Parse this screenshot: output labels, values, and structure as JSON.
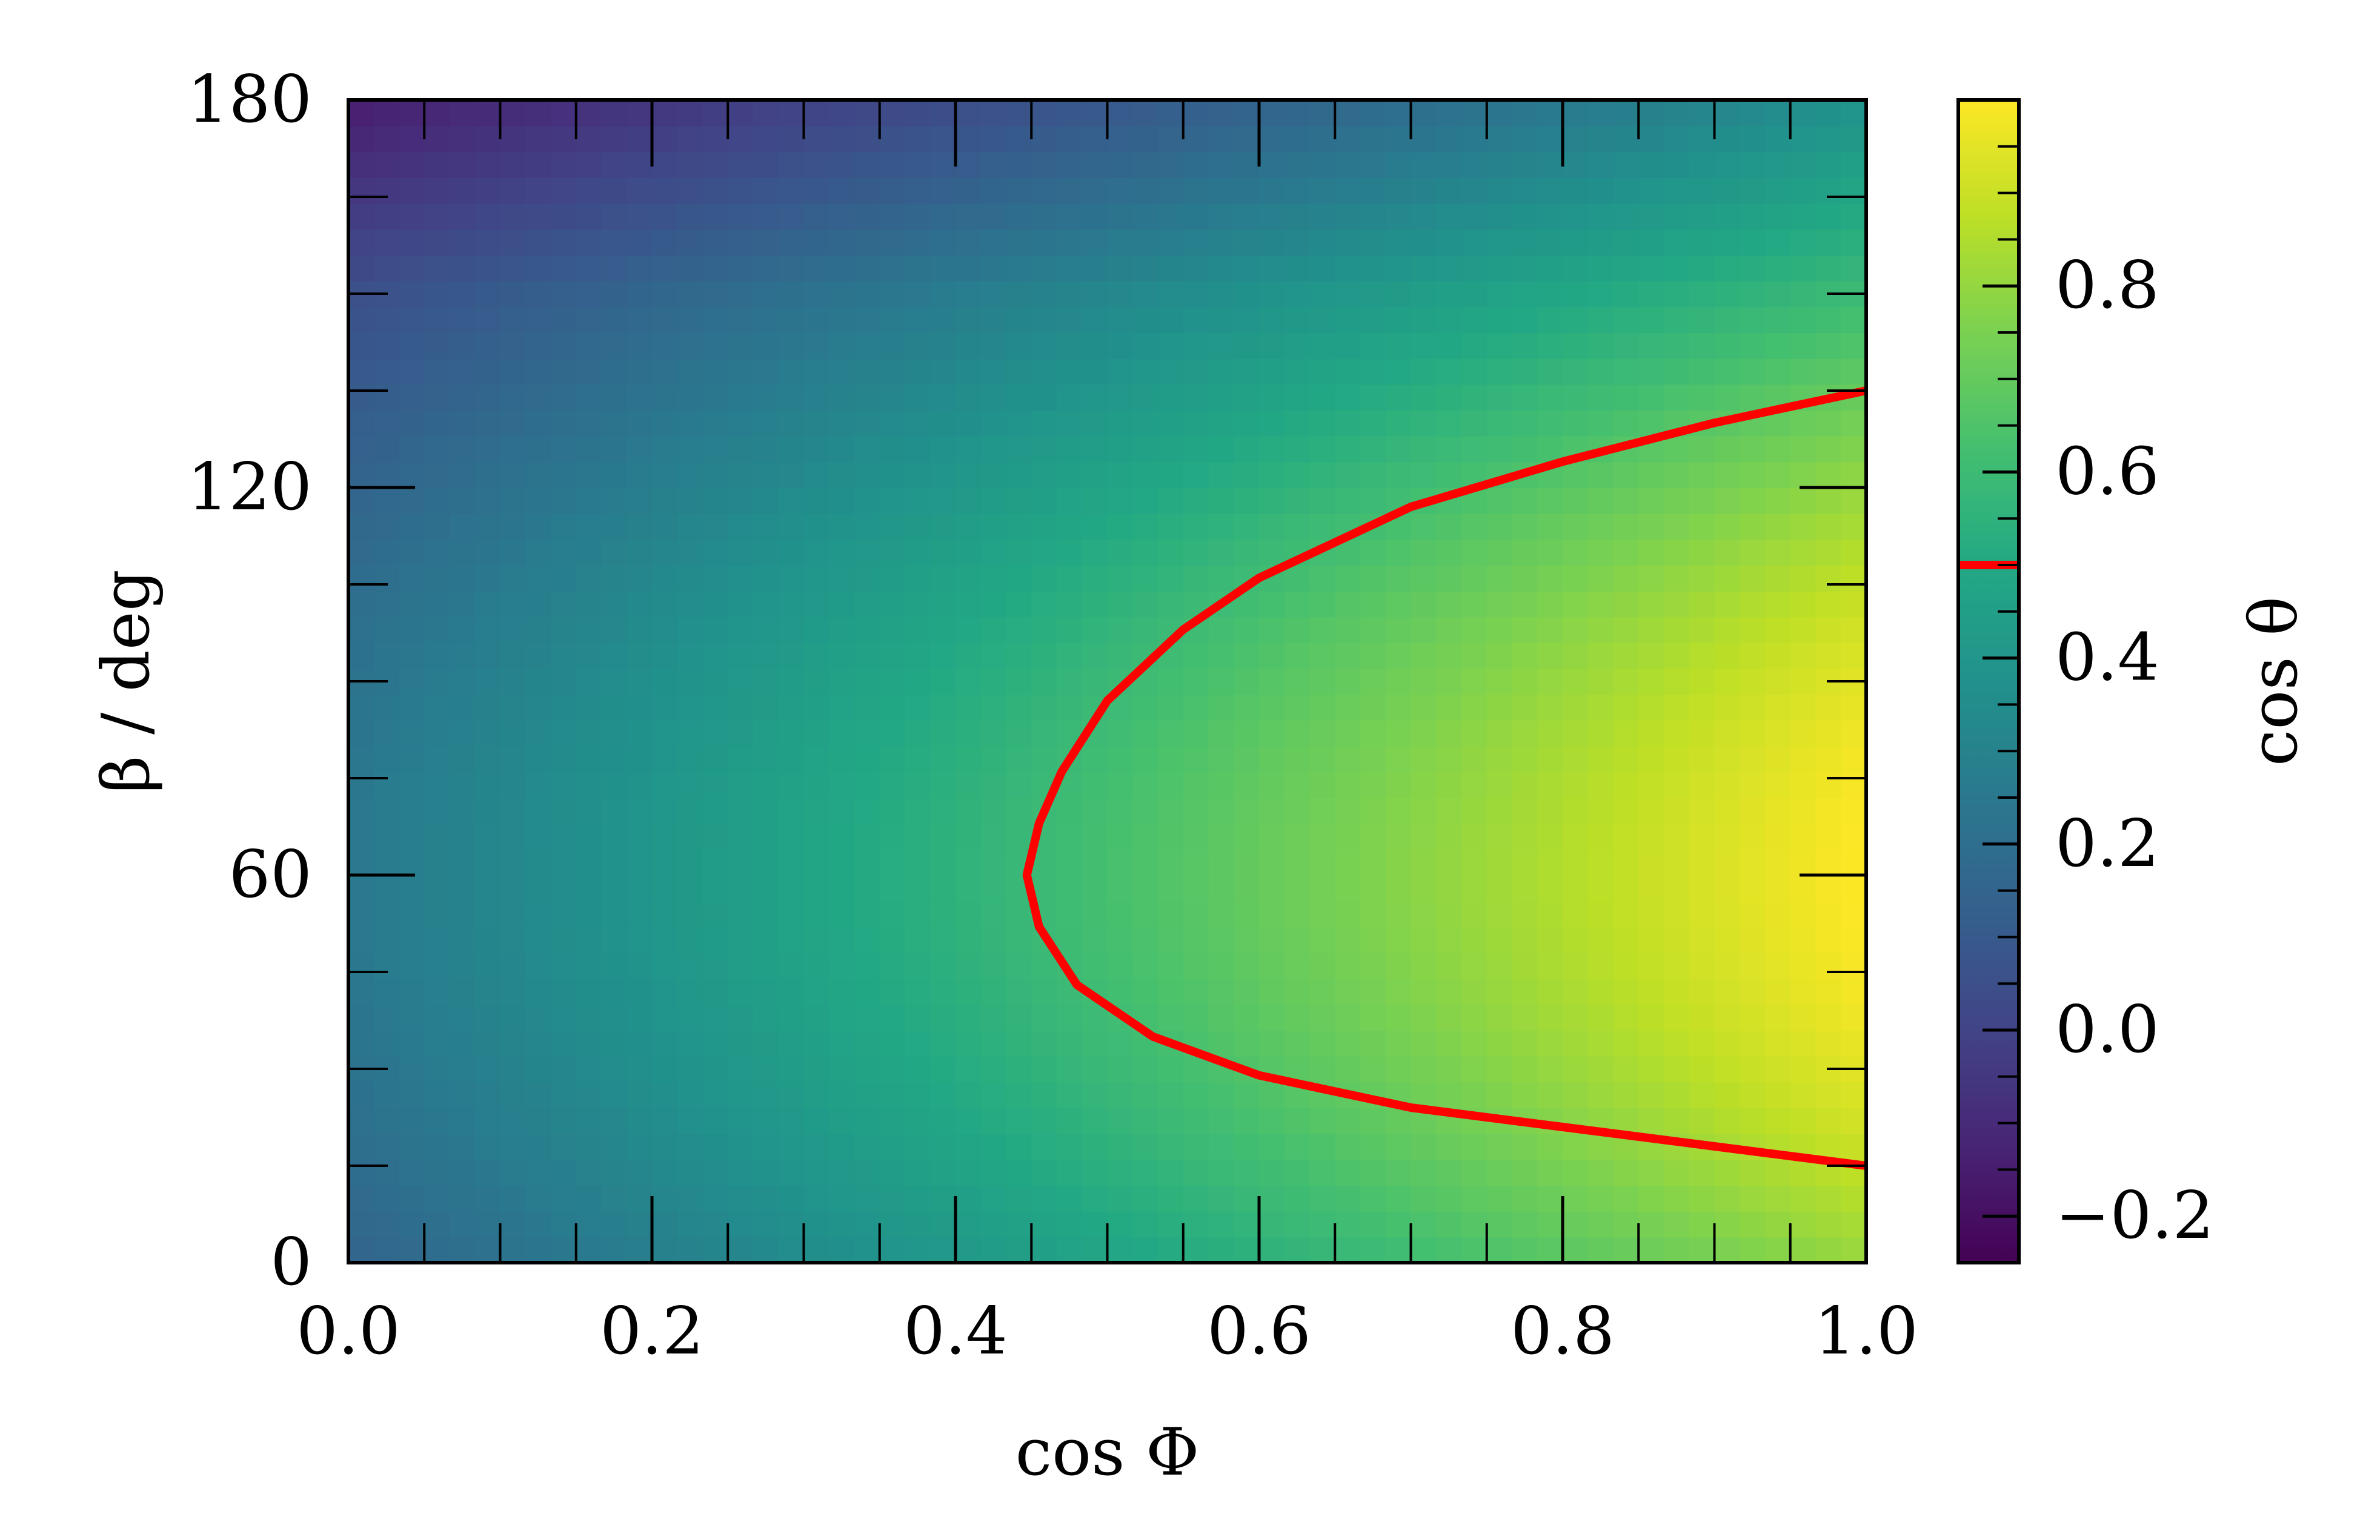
{
  "chart_data": {
    "type": "heatmap",
    "title": "",
    "xlabel": "cos Φ",
    "ylabel": "β / deg",
    "colorbar_label": "cos θ",
    "xlim": [
      0.0,
      1.0
    ],
    "ylim": [
      0,
      180
    ],
    "x_ticks": [
      0.0,
      0.2,
      0.4,
      0.6,
      0.8,
      1.0
    ],
    "x_tick_labels": [
      "0.0",
      "0.2",
      "0.4",
      "0.6",
      "0.8",
      "1.0"
    ],
    "y_ticks": [
      0,
      60,
      120,
      180
    ],
    "y_tick_labels": [
      "0",
      "60",
      "120",
      "180"
    ],
    "colorbar_range": [
      -0.25,
      1.0
    ],
    "colorbar_ticks": [
      -0.2,
      0.0,
      0.2,
      0.4,
      0.6,
      0.8
    ],
    "colorbar_tick_labels": [
      "−0.2",
      "0.0",
      "0.2",
      "0.4",
      "0.6",
      "0.8"
    ],
    "colormap": "viridis",
    "contour_level": 0.5,
    "contour_color": "#ff0000",
    "contour_points": [
      {
        "x": 1.0,
        "y": 15
      },
      {
        "x": 0.9,
        "y": 18
      },
      {
        "x": 0.8,
        "y": 21
      },
      {
        "x": 0.7,
        "y": 24
      },
      {
        "x": 0.6,
        "y": 29
      },
      {
        "x": 0.53,
        "y": 35
      },
      {
        "x": 0.48,
        "y": 43
      },
      {
        "x": 0.455,
        "y": 52
      },
      {
        "x": 0.447,
        "y": 60
      },
      {
        "x": 0.455,
        "y": 68
      },
      {
        "x": 0.47,
        "y": 76
      },
      {
        "x": 0.5,
        "y": 87
      },
      {
        "x": 0.55,
        "y": 98
      },
      {
        "x": 0.6,
        "y": 106
      },
      {
        "x": 0.7,
        "y": 117
      },
      {
        "x": 0.8,
        "y": 124
      },
      {
        "x": 0.9,
        "y": 130
      },
      {
        "x": 1.0,
        "y": 135
      }
    ],
    "grid": false
  }
}
